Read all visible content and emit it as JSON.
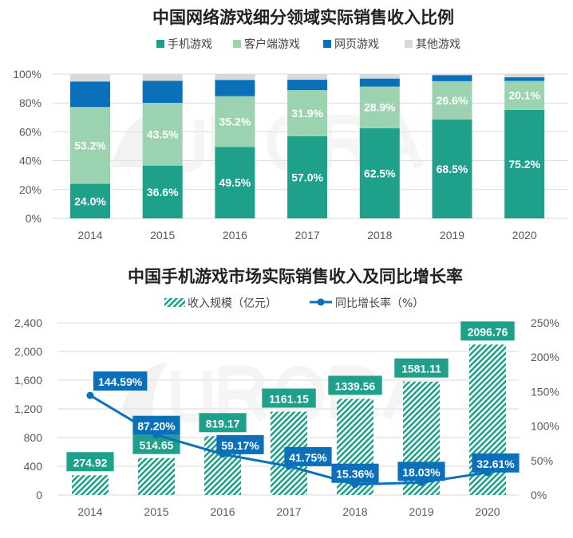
{
  "chart_data": [
    {
      "type": "bar",
      "stacked": true,
      "title": "中国网络游戏细分领域实际销售收入比例",
      "categories": [
        "2014",
        "2015",
        "2016",
        "2017",
        "2018",
        "2019",
        "2020"
      ],
      "series": [
        {
          "name": "手机游戏",
          "color": "#1fa08a",
          "values": [
            24.0,
            36.6,
            49.5,
            57.0,
            62.5,
            68.5,
            75.2
          ],
          "labels": [
            "24.0%",
            "36.6%",
            "49.5%",
            "57.0%",
            "62.5%",
            "68.5%",
            "75.2%"
          ]
        },
        {
          "name": "客户端游戏",
          "color": "#9bd3b0",
          "values": [
            53.2,
            43.5,
            35.2,
            31.9,
            28.9,
            26.6,
            20.1
          ],
          "labels": [
            "53.2%",
            "43.5%",
            "35.2%",
            "31.9%",
            "28.9%",
            "26.6%",
            "20.1%"
          ]
        },
        {
          "name": "网页游戏",
          "color": "#0a70b9",
          "values": [
            17.7,
            15.3,
            11.3,
            7.2,
            5.5,
            4.2,
            2.5
          ]
        },
        {
          "name": "其他游戏",
          "color": "#d9d9d9",
          "values": [
            5.1,
            4.6,
            4.0,
            3.9,
            3.1,
            0.7,
            2.2
          ]
        }
      ],
      "ylim": [
        0,
        100
      ],
      "yticks": [
        "0%",
        "20%",
        "40%",
        "60%",
        "80%",
        "100%"
      ],
      "grid": true,
      "legend": "top"
    },
    {
      "type": "bar+line",
      "title": "中国手机游戏市场实际销售收入及同比增长率",
      "categories": [
        "2014",
        "2015",
        "2016",
        "2017",
        "2018",
        "2019",
        "2020"
      ],
      "series": [
        {
          "name": "收入规模（亿元）",
          "type": "bar",
          "axis": "left",
          "color": "#1fa08a",
          "pattern": "hatched",
          "values": [
            274.92,
            514.65,
            819.17,
            1161.15,
            1339.56,
            1581.11,
            2096.76
          ],
          "labels": [
            "274.92",
            "514.65",
            "819.17",
            "1161.15",
            "1339.56",
            "1581.11",
            "2096.76"
          ]
        },
        {
          "name": "同比增长率（%）",
          "type": "line",
          "axis": "right",
          "color": "#0a70b9",
          "values": [
            144.59,
            87.2,
            59.17,
            41.75,
            15.36,
            18.03,
            32.61
          ],
          "labels": [
            "144.59%",
            "87.20%",
            "59.17%",
            "41.75%",
            "15.36%",
            "18.03%",
            "32.61%"
          ]
        }
      ],
      "ylim_left": [
        0,
        2400
      ],
      "yticks_left": [
        "0",
        "400",
        "800",
        "1,200",
        "1,600",
        "2,000",
        "2,400"
      ],
      "ylim_right": [
        0,
        250
      ],
      "yticks_right": [
        "0%",
        "50%",
        "100%",
        "150%",
        "200%",
        "250%"
      ],
      "grid": true,
      "legend": "top"
    }
  ],
  "watermark": "URORA极光"
}
